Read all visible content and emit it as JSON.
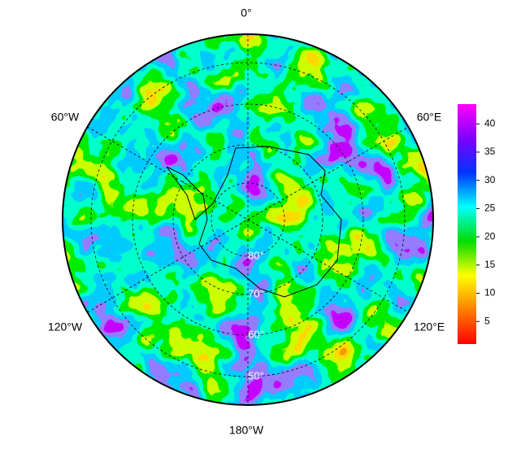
{
  "map": {
    "lon_labels": [
      "0°",
      "60°E",
      "120°E",
      "180°W",
      "120°W",
      "60°W"
    ],
    "lat_labels": [
      "80°",
      "70°",
      "60°",
      "50°"
    ],
    "colorbar": {
      "lim": [
        1,
        43.5
      ],
      "ticks": [
        5,
        10,
        15,
        20,
        25,
        30,
        35,
        40
      ],
      "colors": [
        "#ff0000",
        "#ff7f00",
        "#ffff00",
        "#00dd00",
        "#00ffff",
        "#0033ff",
        "#8000ff",
        "#ff00ff"
      ]
    }
  }
}
